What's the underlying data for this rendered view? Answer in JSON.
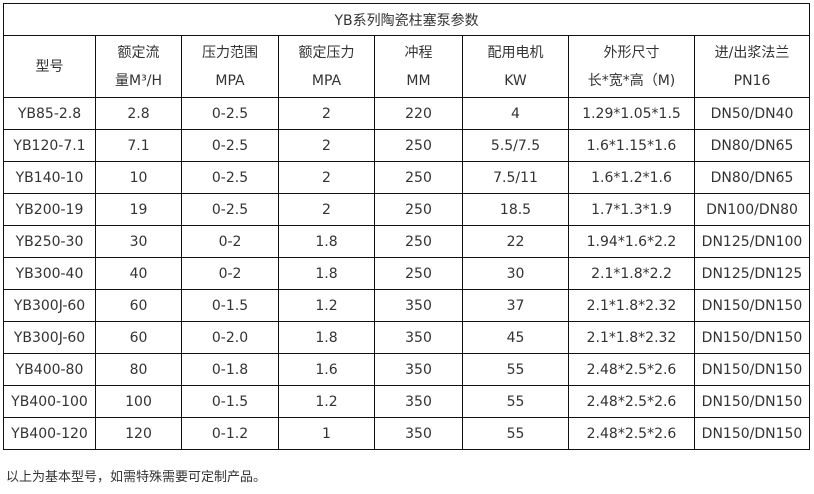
{
  "title": "YB系列陶瓷柱塞泵参数",
  "headers": [
    [
      "型号"
    ],
    [
      "额定流",
      "量M³/H"
    ],
    [
      "压力范围",
      "MPA"
    ],
    [
      "额定压力",
      "MPA"
    ],
    [
      "冲程",
      "MM"
    ],
    [
      "配用电机",
      "KW"
    ],
    [
      "外形尺寸",
      "长*宽*高（M)"
    ],
    [
      "进/出浆法兰",
      "PN16"
    ]
  ],
  "rows": [
    [
      "YB85-2.8",
      "2.8",
      "0-2.5",
      "2",
      "220",
      "4",
      "1.29*1.05*1.5",
      "DN50/DN40"
    ],
    [
      "YB120-7.1",
      "7.1",
      "0-2.5",
      "2",
      "250",
      "5.5/7.5",
      "1.6*1.15*1.6",
      "DN80/DN65"
    ],
    [
      "YB140-10",
      "10",
      "0-2.5",
      "2",
      "250",
      "7.5/11",
      "1.6*1.2*1.6",
      "DN80/DN65"
    ],
    [
      "YB200-19",
      "19",
      "0-2.5",
      "2",
      "250",
      "18.5",
      "1.7*1.3*1.9",
      "DN100/DN80"
    ],
    [
      "YB250-30",
      "30",
      "0-2",
      "1.8",
      "250",
      "22",
      "1.94*1.6*2.2",
      "DN125/DN100"
    ],
    [
      "YB300-40",
      "40",
      "0-2",
      "1.8",
      "250",
      "30",
      "2.1*1.8*2.2",
      "DN125/DN125"
    ],
    [
      "YB300J-60",
      "60",
      "0-1.5",
      "1.2",
      "350",
      "37",
      "2.1*1.8*2.32",
      "DN150/DN150"
    ],
    [
      "YB300J-60",
      "60",
      "0-2.0",
      "1.8",
      "350",
      "45",
      "2.1*1.8*2.32",
      "DN150/DN150"
    ],
    [
      "YB400-80",
      "80",
      "0-1.8",
      "1.6",
      "350",
      "55",
      "2.48*2.5*2.6",
      "DN150/DN150"
    ],
    [
      "YB400-100",
      "100",
      "0-1.5",
      "1.2",
      "350",
      "55",
      "2.48*2.5*2.6",
      "DN150/DN150"
    ],
    [
      "YB400-120",
      "120",
      "0-1.2",
      "1",
      "350",
      "55",
      "2.48*2.5*2.6",
      "DN150/DN150"
    ]
  ],
  "footer": "以上为基本型号，如需特殊需要可定制产品。"
}
